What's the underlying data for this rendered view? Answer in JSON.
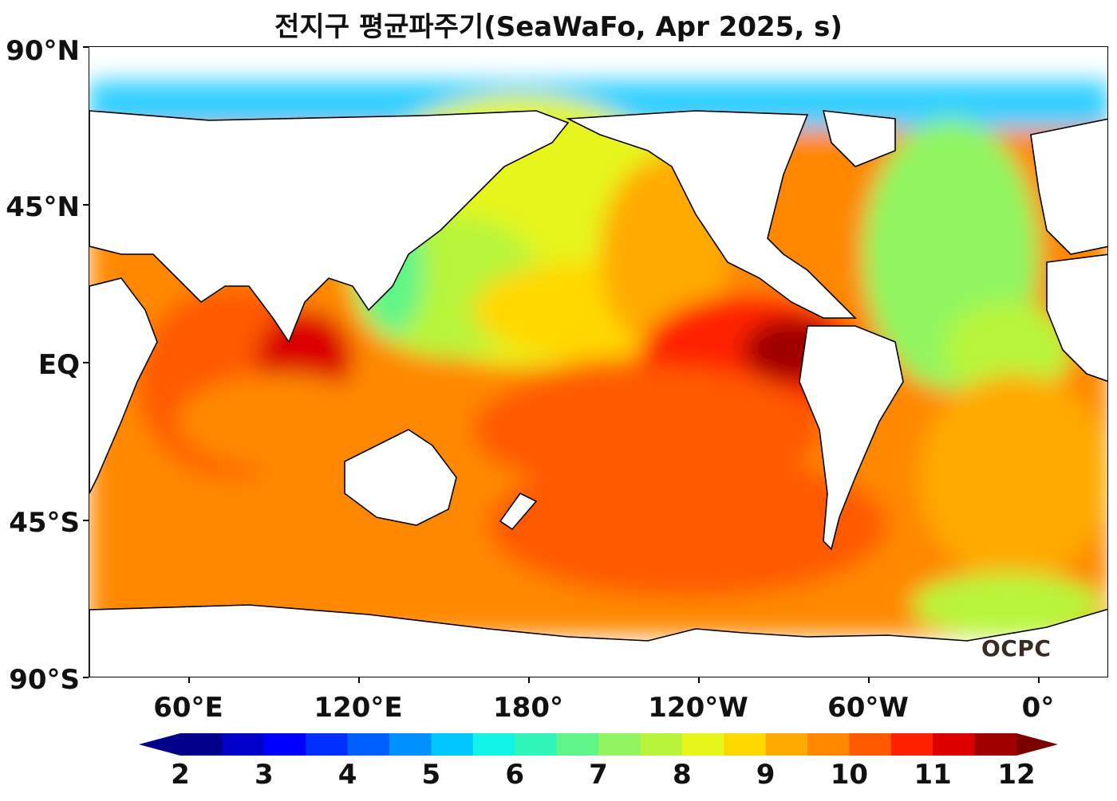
{
  "title": "전지구 평균파주기(SeaWaFo, Apr 2025, s)",
  "lat_labels": [
    "90°N",
    "45°N",
    "EQ",
    "45°S",
    "90°S"
  ],
  "lon_labels": [
    "60°E",
    "120°E",
    "180°",
    "120°W",
    "60°W",
    "0°"
  ],
  "logo": "OCPC",
  "colorbar": {
    "labels": [
      "2",
      "3",
      "4",
      "5",
      "6",
      "7",
      "8",
      "9",
      "10",
      "11",
      "12"
    ],
    "colors": [
      "#00008b",
      "#0000c8",
      "#0000ff",
      "#0030ff",
      "#0060ff",
      "#0090ff",
      "#00c8ff",
      "#12f5e6",
      "#30f5b8",
      "#60f588",
      "#90f560",
      "#b8f53a",
      "#e6f51a",
      "#ffd800",
      "#ffaa00",
      "#ff8800",
      "#ff5a00",
      "#ff2000",
      "#dc0000",
      "#a00000"
    ]
  },
  "legend_min_color": "#00008b",
  "legend_max_color": "#7d0000"
}
